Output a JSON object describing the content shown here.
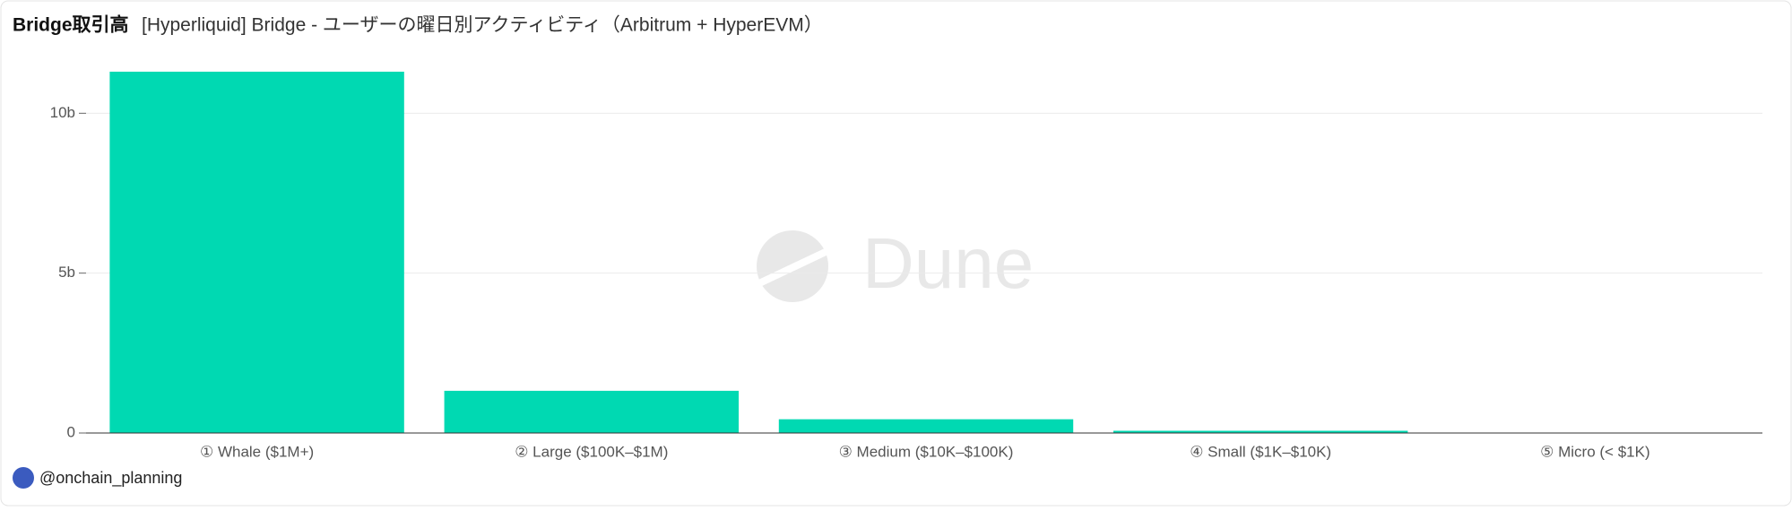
{
  "chart_data": {
    "type": "bar",
    "title": "Bridge取引高",
    "subtitle": "[Hyperliquid] Bridge - ユーザーの曜日別アクティビティ（Arbitrum + HyperEVM）",
    "categories": [
      "① Whale ($1M+)",
      "② Large ($100K–$1M)",
      "③ Medium ($10K–$100K)",
      "④ Small ($1K–$10K)",
      "⑤ Micro (< $1K)"
    ],
    "values": [
      11.3,
      1.32,
      0.43,
      0.07,
      0.01
    ],
    "color": "#00d9b2",
    "ylim": [
      0,
      12
    ],
    "yticks": [
      {
        "value": 0,
        "label": "0"
      },
      {
        "value": 5,
        "label": "5b"
      },
      {
        "value": 10,
        "label": "10b"
      }
    ],
    "grid": true,
    "watermark": "Dune",
    "author": "@onchain_planning"
  }
}
